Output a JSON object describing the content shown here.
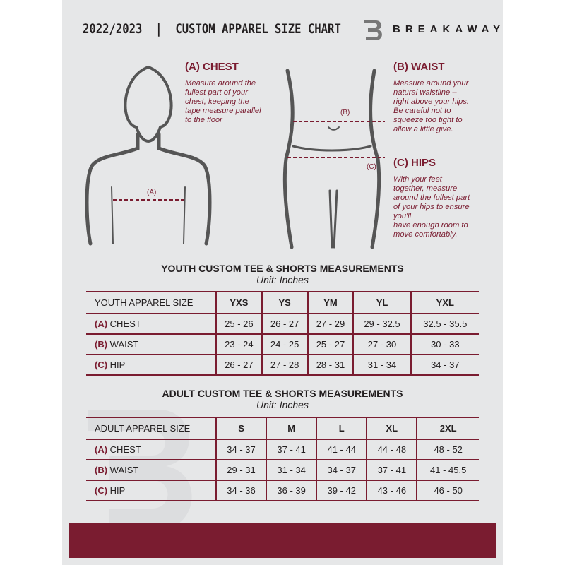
{
  "header": {
    "title": "2022/2023  |  CUSTOM APPAREL SIZE CHART",
    "brand": "BREAKAWAY",
    "logo_letter": "B"
  },
  "chest": {
    "heading": "(A) CHEST",
    "text": [
      "Measure around the",
      "fullest part of your",
      "chest, keeping the",
      "tape measure parallel",
      "to the floor"
    ],
    "marker": "(A)"
  },
  "waist": {
    "heading": "(B) WAIST",
    "text": [
      "Measure around your",
      "natural waistline –",
      "right above your hips.",
      "Be careful not to",
      "squeeze too tight to",
      "allow a little give."
    ],
    "marker": "(B)"
  },
  "hips": {
    "heading": "(C) HIPS",
    "text": [
      "With your feet",
      "together, measure",
      "around the fullest part",
      "of your hips to ensure",
      "you'll",
      "have enough room to",
      "move comfortably."
    ],
    "marker": "(C)"
  },
  "youth": {
    "title": "YOUTH CUSTOM TEE & SHORTS MEASUREMENTS",
    "unit": "Unit: Inches",
    "size_label": "YOUTH APPAREL SIZE",
    "sizes": [
      "YXS",
      "YS",
      "YM",
      "YL",
      "YXL"
    ],
    "rows": [
      {
        "code": "(A)",
        "name": "CHEST",
        "values": [
          "25 - 26",
          "26 - 27",
          "27 - 29",
          "29 - 32.5",
          "32.5 - 35.5"
        ]
      },
      {
        "code": "(B)",
        "name": "WAIST",
        "values": [
          "23 - 24",
          "24 - 25",
          "25 - 27",
          "27 - 30",
          "30 - 33"
        ]
      },
      {
        "code": "(C)",
        "name": "HIP",
        "values": [
          "26 - 27",
          "27 - 28",
          "28 - 31",
          "31 - 34",
          "34 - 37"
        ]
      }
    ]
  },
  "adult": {
    "title": "ADULT CUSTOM TEE & SHORTS MEASUREMENTS",
    "unit": "Unit: Inches",
    "size_label": "ADULT APPAREL SIZE",
    "sizes": [
      "S",
      "M",
      "L",
      "XL",
      "2XL"
    ],
    "rows": [
      {
        "code": "(A)",
        "name": "CHEST",
        "values": [
          "34 - 37",
          "37 - 41",
          "41 - 44",
          "44 - 48",
          "48 - 52"
        ]
      },
      {
        "code": "(B)",
        "name": "WAIST",
        "values": [
          "29 - 31",
          "31 - 34",
          "34 - 37",
          "37 - 41",
          "41 - 45.5"
        ]
      },
      {
        "code": "(C)",
        "name": "HIP",
        "values": [
          "34 - 36",
          "36 - 39",
          "39 - 42",
          "43 - 46",
          "46 - 50"
        ]
      }
    ]
  },
  "colors": {
    "accent": "#7a1c30",
    "background": "#e6e7e8",
    "text": "#231f20"
  }
}
